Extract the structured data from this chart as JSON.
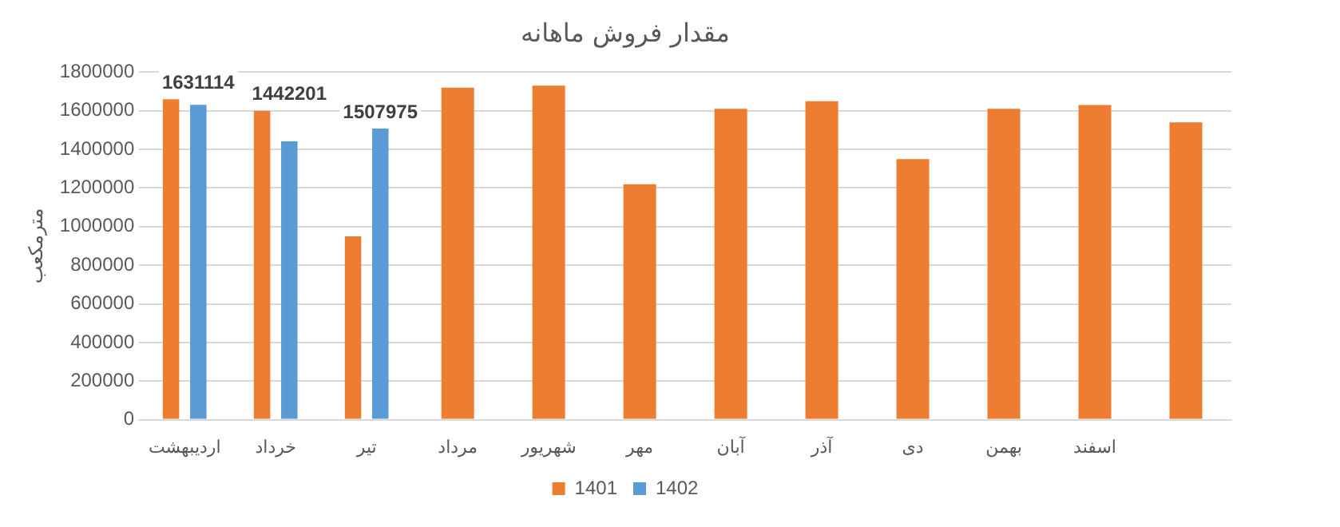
{
  "chart_data": {
    "type": "bar",
    "title": "مقدار فروش ماهانه",
    "ylabel": "مترمکعب",
    "categories": [
      "اردیبهشت",
      "خرداد",
      "تیر",
      "مرداد",
      "شهریور",
      "مهر",
      "آبان",
      "آذر",
      "دی",
      "بهمن",
      "اسفند",
      null
    ],
    "series": [
      {
        "name": "1401",
        "color": "#ed7d31",
        "values": [
          1660000,
          1600000,
          950000,
          1720000,
          1730000,
          1220000,
          1610000,
          1650000,
          1350000,
          1610000,
          1630000,
          1540000
        ]
      },
      {
        "name": "1402",
        "color": "#5b9bd5",
        "values": [
          1631114,
          1442201,
          1507975,
          null,
          null,
          null,
          null,
          null,
          null,
          null,
          null,
          null
        ],
        "value_labels": [
          "1631114",
          "1442201",
          "1507975",
          null,
          null,
          null,
          null,
          null,
          null,
          null,
          null,
          null
        ]
      }
    ],
    "ylim": [
      0,
      1800000
    ],
    "yticks": [
      0,
      200000,
      400000,
      600000,
      800000,
      1000000,
      1200000,
      1400000,
      1600000,
      1800000
    ],
    "grid": "y",
    "legend": "bottom"
  }
}
